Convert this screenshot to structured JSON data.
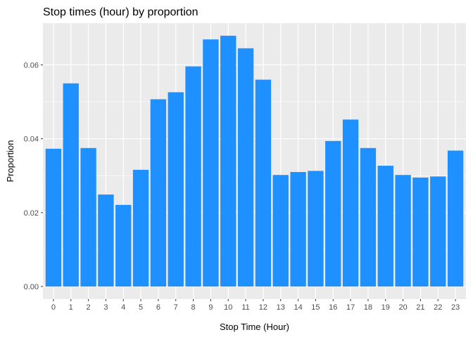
{
  "chart_data": {
    "type": "bar",
    "title": "Stop times (hour) by proportion",
    "xlabel": "Stop Time (Hour)",
    "ylabel": "Proportion",
    "categories": [
      "0",
      "1",
      "2",
      "3",
      "4",
      "5",
      "6",
      "7",
      "8",
      "9",
      "10",
      "11",
      "12",
      "13",
      "14",
      "15",
      "16",
      "17",
      "18",
      "19",
      "20",
      "21",
      "22",
      "23"
    ],
    "values": [
      0.0373,
      0.055,
      0.0375,
      0.0249,
      0.0221,
      0.0316,
      0.0507,
      0.0526,
      0.0596,
      0.0669,
      0.0679,
      0.0645,
      0.056,
      0.0302,
      0.031,
      0.0313,
      0.0394,
      0.0452,
      0.0375,
      0.0327,
      0.0302,
      0.0295,
      0.0298,
      0.0368
    ],
    "ylim": [
      -0.0034,
      0.0713
    ],
    "yticks": [
      0.0,
      0.02,
      0.04,
      0.06
    ],
    "ytick_labels": [
      "0.00",
      "0.02",
      "0.04",
      "0.06"
    ],
    "grid": true,
    "bar_color": "#1E90FF",
    "panel_color": "#EBEBEB",
    "grid_color": "#FFFFFF"
  }
}
